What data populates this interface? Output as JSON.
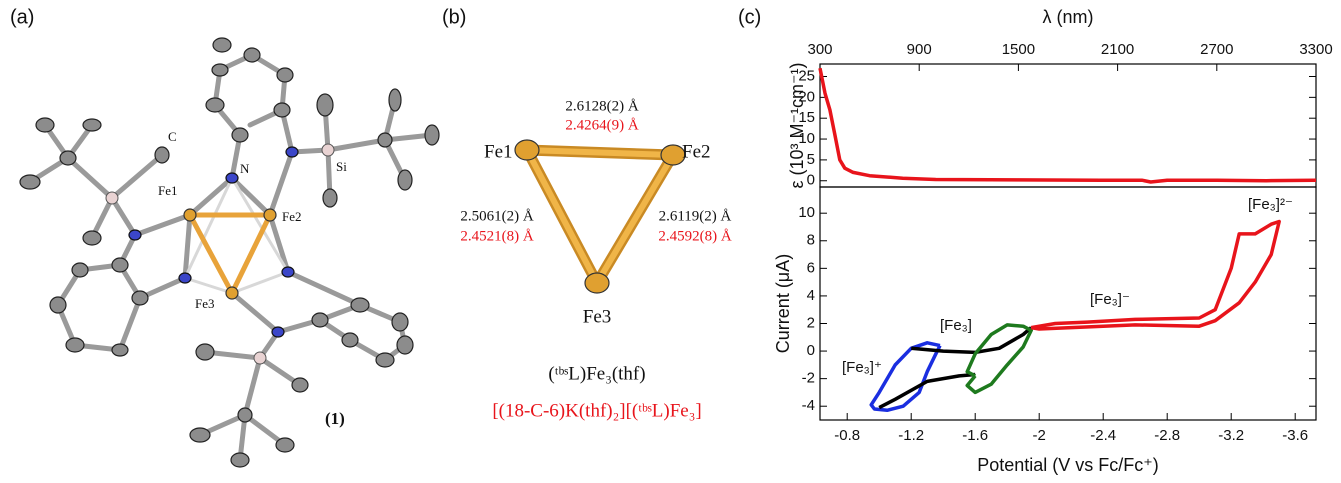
{
  "panel_labels": [
    "(a)",
    "(b)",
    "(c)"
  ],
  "structure": {
    "atom_labels": [
      "C",
      "Fe1",
      "N",
      "Fe2",
      "Si",
      "Fe3"
    ],
    "compound_label": "(1)"
  },
  "triangle": {
    "atoms": [
      "Fe1",
      "Fe2",
      "Fe3"
    ],
    "distances": [
      {
        "neutral": "2.6128(2) Å",
        "reduced": "2.4264(9) Å"
      },
      {
        "neutral": "2.5061(2) Å",
        "reduced": "2.4521(8) Å"
      },
      {
        "neutral": "2.6119(2) Å",
        "reduced": "2.4592(8) Å"
      }
    ],
    "formula_neutral": "(ᵗᵇˢL)Fe₃(thf)",
    "formula_reduced": "[(18-C-6)K(thf)₂][(ᵗᵇˢL)Fe₃]"
  },
  "chart_data": [
    {
      "type": "line",
      "x_label": "λ (nm)",
      "y_label": "ε (10³ M⁻¹cm⁻¹)",
      "x_axis": "top",
      "x": [
        300,
        330,
        360,
        390,
        420,
        450,
        500,
        600,
        800,
        1000,
        1500,
        2000,
        2250,
        2300,
        2400,
        2700,
        3000,
        3300
      ],
      "values": [
        27,
        21,
        17,
        11,
        5,
        3,
        2,
        1.2,
        0.6,
        0.3,
        0.2,
        0.1,
        0.1,
        -0.3,
        0.1,
        0.1,
        0,
        0.1
      ],
      "color": "#e8141b",
      "xlim": [
        300,
        3300
      ],
      "xticks": [
        300,
        900,
        1500,
        2100,
        2700,
        3300
      ],
      "ylim": [
        -1.5,
        28
      ],
      "yticks": [
        0,
        5,
        10,
        15,
        20,
        25
      ]
    },
    {
      "type": "line",
      "x_label": "Potential (V vs Fc/Fc⁺)",
      "y_label": "Current (μA)",
      "x_axis": "bottom",
      "series": [
        {
          "color": "#1a2ee0",
          "x": [
            -1.38,
            -1.3,
            -1.2,
            -1.1,
            -1.0,
            -0.95,
            -0.97,
            -1.05,
            -1.15,
            -1.25,
            -1.3,
            -1.35,
            -1.38
          ],
          "values": [
            0.4,
            0.6,
            0.2,
            -1,
            -3,
            -3.9,
            -4.2,
            -4.3,
            -4,
            -3,
            -1.5,
            -0.3,
            0.4
          ]
        },
        {
          "color": "#000000",
          "x": [
            -1.2,
            -1.4,
            -1.6,
            -1.75,
            -1.9,
            -1.95,
            null,
            -1.0,
            -1.1,
            -1.3,
            -1.5,
            -1.6
          ],
          "values": [
            0.2,
            0,
            -0.1,
            0.2,
            1.2,
            1.7,
            null,
            -4.1,
            -3.5,
            -2.2,
            -1.8,
            -1.7
          ]
        },
        {
          "color": "#1e7a1e",
          "x": [
            -1.6,
            -1.55,
            -1.6,
            -1.7,
            -1.8,
            -1.9,
            -1.95,
            -1.9,
            -1.8,
            -1.7,
            -1.6,
            -1.55,
            -1.6
          ],
          "values": [
            -1.8,
            -2.5,
            -3,
            -2.4,
            -1,
            0.3,
            1.5,
            1.8,
            1.9,
            1.2,
            -0.2,
            -1.5,
            -1.8
          ]
        },
        {
          "color": "#e8141b",
          "x": [
            -1.95,
            -2.1,
            -2.3,
            -2.6,
            -3.0,
            -3.1,
            -3.2,
            -3.25,
            -3.35,
            -3.45,
            -3.5,
            -3.45,
            -3.35,
            -3.25,
            -3.1,
            -3.0,
            -2.6,
            -2.2,
            -2.0,
            -1.95
          ],
          "values": [
            1.7,
            2,
            2.1,
            2.3,
            2.4,
            3,
            6,
            8.5,
            8.5,
            9.2,
            9.4,
            7,
            5,
            3.5,
            2.2,
            1.8,
            1.9,
            1.7,
            1.6,
            1.7
          ]
        }
      ],
      "annotations": [
        "[Fe₃]⁺",
        "[Fe₃]",
        "[Fe₃]⁻",
        "[Fe₃]²⁻"
      ],
      "xlim": [
        -0.63,
        -3.73
      ],
      "xticks": [
        -0.8,
        -1.2,
        -1.6,
        -2.0,
        -2.4,
        -2.8,
        -3.2,
        -3.6
      ],
      "ylim": [
        -5,
        11.9
      ],
      "yticks": [
        -4,
        -2,
        0,
        2,
        4,
        6,
        8,
        10
      ]
    }
  ]
}
